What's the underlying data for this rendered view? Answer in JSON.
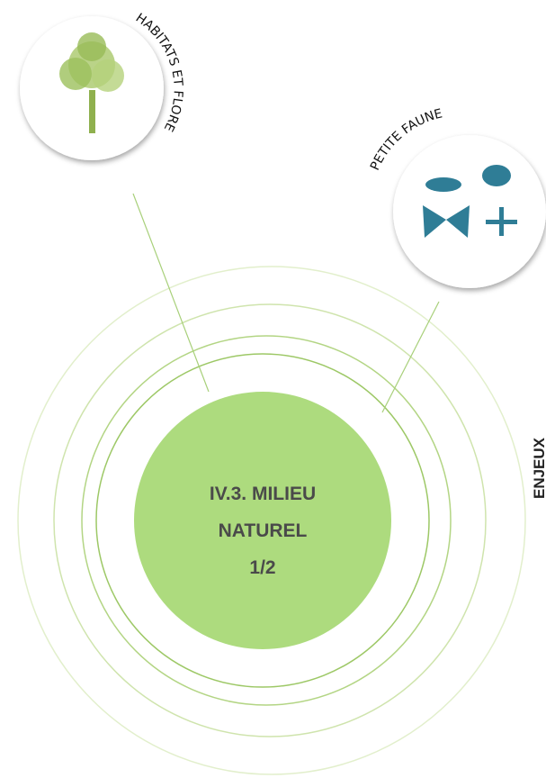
{
  "center": {
    "lines": [
      "IV.3. MILIEU",
      "NATUREL",
      "1/2"
    ]
  },
  "topics": [
    {
      "label": "HABITATS ET FLORE"
    },
    {
      "label": "PETITE FAUNE"
    }
  ],
  "side_label": "ENJEUX"
}
